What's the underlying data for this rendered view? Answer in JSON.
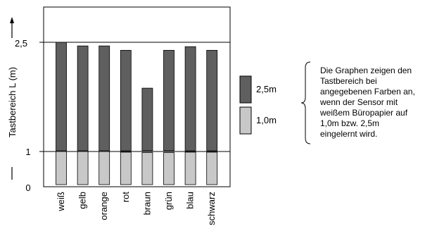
{
  "chart_data": {
    "type": "bar",
    "ylabel": "Tastbereich L (m)",
    "yticks": [
      "2,5",
      "1",
      "0"
    ],
    "categories": [
      "weiß",
      "gelb",
      "orange",
      "rot",
      "braun",
      "grün",
      "blau",
      "schwarz"
    ],
    "series": [
      {
        "name": "1,0m",
        "color": "#c8c8c8",
        "values": [
          1.0,
          1.0,
          1.0,
          0.98,
          0.97,
          0.97,
          0.98,
          0.98
        ]
      },
      {
        "name": "2,5m",
        "color": "#5f5f5f",
        "values": [
          2.5,
          2.45,
          2.45,
          2.39,
          1.87,
          2.39,
          2.44,
          2.39
        ]
      }
    ],
    "legend": [
      {
        "label": "2,5m",
        "color": "#5f5f5f"
      },
      {
        "label": "1,0m",
        "color": "#c8c8c8"
      }
    ]
  },
  "note": "Die Graphen zeigen den\nTastbereich bei\nangegebenen Farben an,\nwenn der Sensor mit\nweißem Büropapier auf\n1,0m bzw. 2,5m\neingelernt wird."
}
